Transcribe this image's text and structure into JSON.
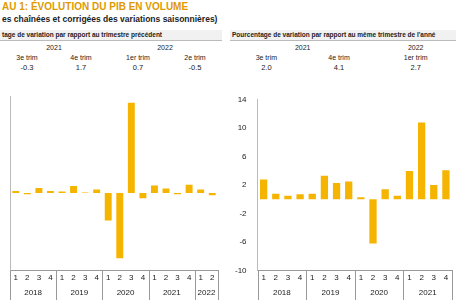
{
  "title": "AU 1: ÉVOLUTION DU PIB EN VOLUME",
  "subtitle": "es chaînées et corrigées des variations saisonnières)",
  "tables": [
    {
      "years": [
        {
          "label": "2021",
          "cols": [
            "3e trim",
            "4e trim"
          ]
        },
        {
          "label": "2022",
          "cols": [
            "1er trim",
            "2e trim"
          ]
        }
      ],
      "values": [
        "-0.3",
        "1.7",
        "0.7",
        "-0.5"
      ]
    },
    {
      "years": [
        {
          "label": "2021",
          "cols": [
            "3e trim",
            "4e trim"
          ]
        },
        {
          "label": "2022",
          "cols": [
            "1er trim"
          ]
        }
      ],
      "values": [
        "2.0",
        "4.1",
        "2.7"
      ]
    }
  ],
  "chart_data": [
    {
      "type": "bar",
      "title": "tage de variation par rapport au trimestre précédent",
      "categories": [
        "1",
        "2",
        "3",
        "4",
        "1",
        "2",
        "3",
        "4",
        "1",
        "2",
        "3",
        "4",
        "1",
        "2",
        "3",
        "4",
        "1",
        "2"
      ],
      "x_groups": [
        {
          "label": "2018",
          "size": 4
        },
        {
          "label": "2019",
          "size": 4
        },
        {
          "label": "2020",
          "size": 4
        },
        {
          "label": "2021",
          "size": 4
        },
        {
          "label": "2022",
          "size": 2
        }
      ],
      "values": [
        0.4,
        -0.3,
        1.0,
        0.4,
        0.3,
        1.4,
        0.1,
        0.7,
        -5.7,
        -13.5,
        18.6,
        -1.1,
        1.5,
        0.9,
        -0.3,
        1.7,
        0.7,
        -0.5
      ],
      "color": "#f5b400",
      "ylim": [
        -16,
        20
      ],
      "grid": false,
      "tick_labels": "x"
    },
    {
      "type": "bar",
      "title": "Pourcentage de variation par rapport au même trimestre de l'anné",
      "categories": [
        "1",
        "2",
        "3",
        "4",
        "1",
        "2",
        "3",
        "4",
        "1",
        "2",
        "3",
        "4",
        "1",
        "2",
        "3",
        "4"
      ],
      "x_groups": [
        {
          "label": "2018",
          "size": 4
        },
        {
          "label": "2019",
          "size": 4
        },
        {
          "label": "2020",
          "size": 4
        },
        {
          "label": "2021",
          "size": 4
        }
      ],
      "values": [
        2.8,
        0.8,
        0.5,
        0.7,
        0.8,
        3.3,
        2.3,
        2.5,
        0.3,
        -6.2,
        1.4,
        0.5,
        4.0,
        10.8,
        2.0,
        4.1
      ],
      "color": "#f5b400",
      "ylim": [
        -10,
        14
      ],
      "yticks": [
        -10,
        -6,
        -2,
        2,
        6,
        10,
        14
      ],
      "grid": false
    }
  ]
}
